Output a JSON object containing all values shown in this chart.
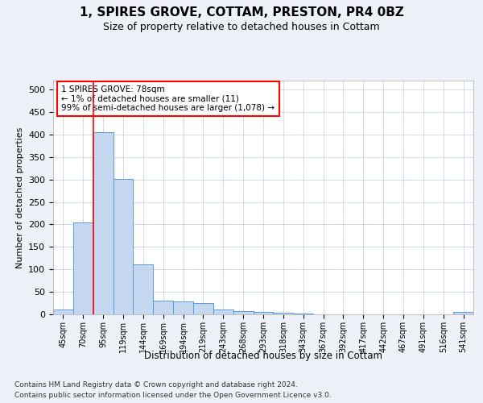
{
  "title": "1, SPIRES GROVE, COTTAM, PRESTON, PR4 0BZ",
  "subtitle": "Size of property relative to detached houses in Cottam",
  "xlabel": "Distribution of detached houses by size in Cottam",
  "ylabel": "Number of detached properties",
  "categories": [
    "45sqm",
    "70sqm",
    "95sqm",
    "119sqm",
    "144sqm",
    "169sqm",
    "194sqm",
    "219sqm",
    "243sqm",
    "268sqm",
    "293sqm",
    "318sqm",
    "343sqm",
    "367sqm",
    "392sqm",
    "417sqm",
    "442sqm",
    "467sqm",
    "491sqm",
    "516sqm",
    "541sqm"
  ],
  "values": [
    10,
    205,
    405,
    302,
    112,
    30,
    28,
    26,
    10,
    7,
    5,
    4,
    1,
    0,
    0,
    0,
    0,
    0,
    0,
    0,
    5
  ],
  "bar_color": "#c5d8f0",
  "bar_edge_color": "#5b9bd5",
  "annotation_text_line1": "1 SPIRES GROVE: 78sqm",
  "annotation_text_line2": "← 1% of detached houses are smaller (11)",
  "annotation_text_line3": "99% of semi-detached houses are larger (1,078) →",
  "annotation_box_color": "white",
  "annotation_box_edge_color": "red",
  "vline_color": "red",
  "ylim": [
    0,
    520
  ],
  "yticks": [
    0,
    50,
    100,
    150,
    200,
    250,
    300,
    350,
    400,
    450,
    500
  ],
  "footnote1": "Contains HM Land Registry data © Crown copyright and database right 2024.",
  "footnote2": "Contains public sector information licensed under the Open Government Licence v3.0.",
  "bg_color": "#eef2f8",
  "plot_bg_color": "white"
}
